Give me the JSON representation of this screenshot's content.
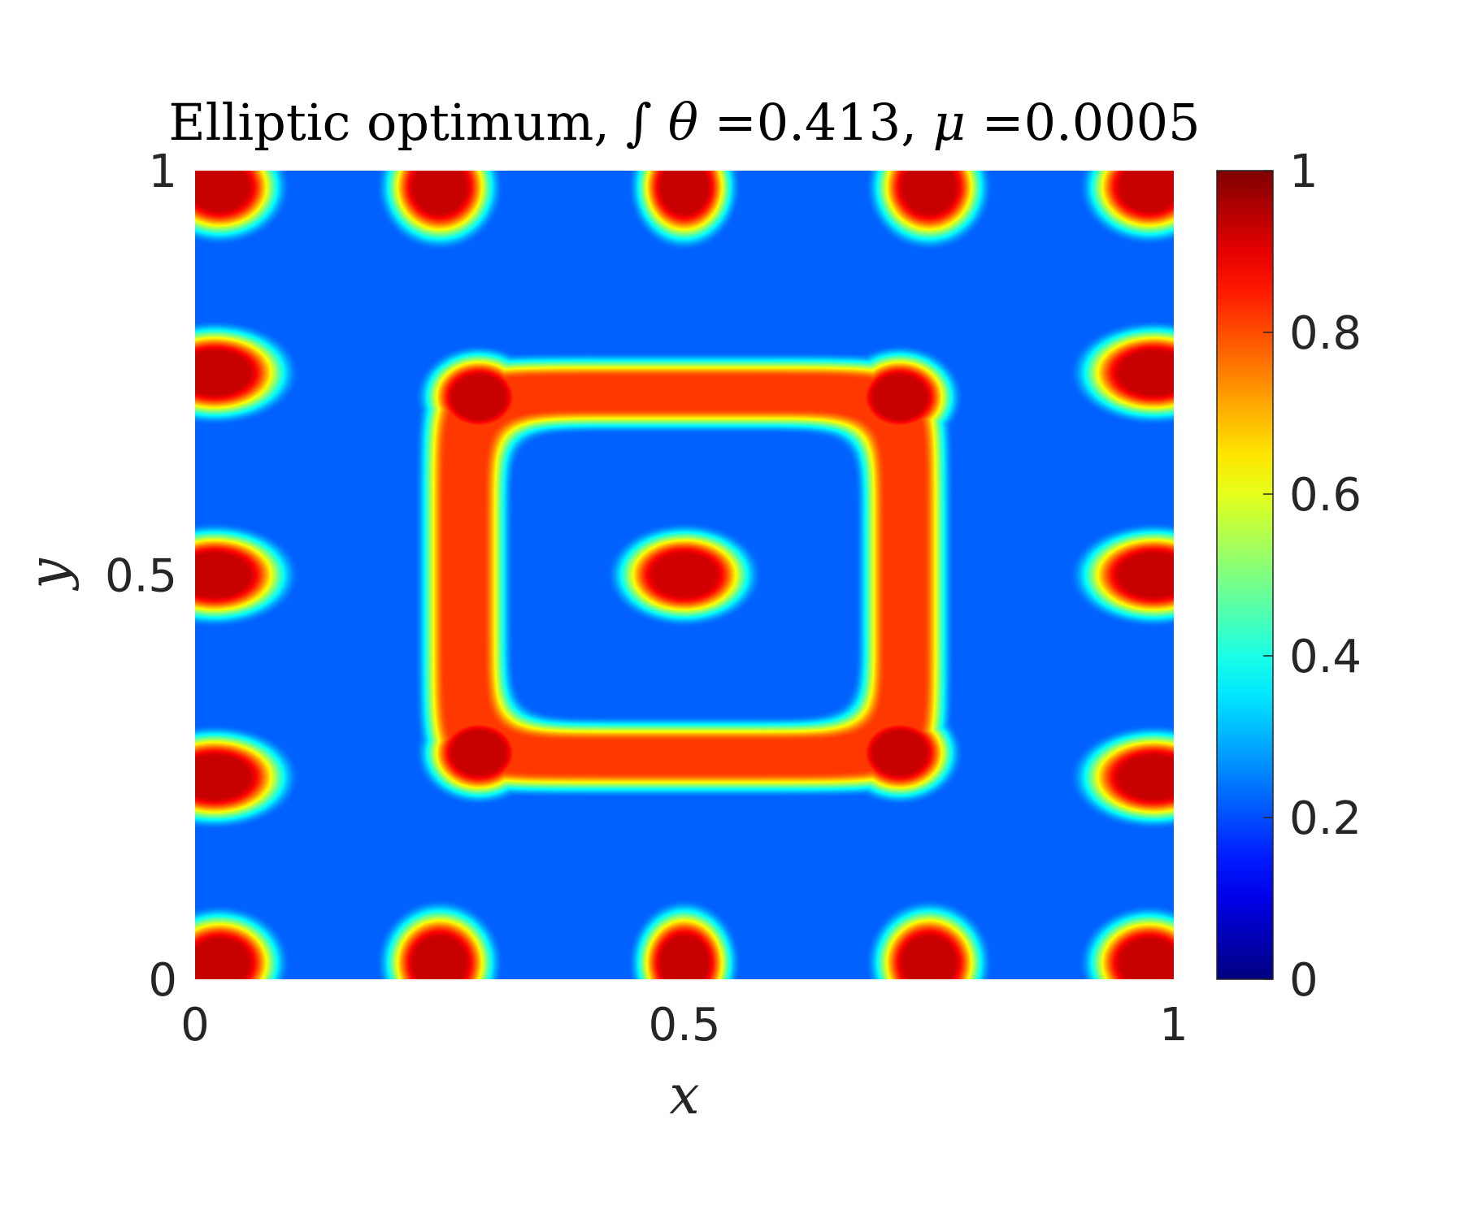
{
  "chart_data": {
    "type": "heatmap",
    "title": {
      "prefix": "Elliptic optimum, ",
      "integral_sign": "∫",
      "theta_symbol": "θ",
      "theta_value": " =0.413, ",
      "mu_symbol": "μ",
      "mu_value": " =0.0005"
    },
    "xlabel": "x",
    "ylabel": "y",
    "xlim": [
      0,
      1
    ],
    "ylim": [
      0,
      1
    ],
    "x_ticks": [
      0,
      0.5,
      1
    ],
    "y_ticks": [
      0,
      0.5,
      1
    ],
    "x_tick_labels": [
      "0",
      "0.5",
      "1"
    ],
    "y_tick_labels": [
      "0",
      "0.5",
      "1"
    ],
    "colormap": "jet",
    "color_range": [
      0,
      1
    ],
    "colorbar_ticks": [
      0,
      0.2,
      0.4,
      0.6,
      0.8,
      1
    ],
    "colorbar_tick_labels": [
      "0",
      "0.2",
      "0.4",
      "0.6",
      "0.8",
      "1"
    ],
    "background_level": 0.22,
    "features": [
      {
        "shape": "blob",
        "x": 0.5,
        "y": 0.5,
        "rx": 0.055,
        "ry": 0.045,
        "value": 0.92
      },
      {
        "shape": "square-ring",
        "x": 0.5,
        "y": 0.5,
        "half_width": 0.225,
        "thickness": 0.035,
        "value": 0.82
      },
      {
        "shape": "blob",
        "x": 0.29,
        "y": 0.72,
        "rx": 0.045,
        "ry": 0.045,
        "value": 0.93
      },
      {
        "shape": "blob",
        "x": 0.72,
        "y": 0.72,
        "rx": 0.045,
        "ry": 0.045,
        "value": 0.93
      },
      {
        "shape": "blob",
        "x": 0.29,
        "y": 0.28,
        "rx": 0.045,
        "ry": 0.045,
        "value": 0.93
      },
      {
        "shape": "blob",
        "x": 0.72,
        "y": 0.28,
        "rx": 0.045,
        "ry": 0.045,
        "value": 0.93
      },
      {
        "shape": "blob",
        "x": 0.025,
        "y": 0.98,
        "rx": 0.05,
        "ry": 0.05,
        "value": 0.93
      },
      {
        "shape": "blob",
        "x": 0.25,
        "y": 0.98,
        "rx": 0.045,
        "ry": 0.055,
        "value": 0.93
      },
      {
        "shape": "blob",
        "x": 0.5,
        "y": 0.98,
        "rx": 0.04,
        "ry": 0.055,
        "value": 0.93
      },
      {
        "shape": "blob",
        "x": 0.75,
        "y": 0.98,
        "rx": 0.045,
        "ry": 0.055,
        "value": 0.93
      },
      {
        "shape": "blob",
        "x": 0.975,
        "y": 0.98,
        "rx": 0.05,
        "ry": 0.05,
        "value": 0.93
      },
      {
        "shape": "blob",
        "x": 0.025,
        "y": 0.02,
        "rx": 0.05,
        "ry": 0.05,
        "value": 0.93
      },
      {
        "shape": "blob",
        "x": 0.25,
        "y": 0.02,
        "rx": 0.045,
        "ry": 0.055,
        "value": 0.93
      },
      {
        "shape": "blob",
        "x": 0.5,
        "y": 0.02,
        "rx": 0.04,
        "ry": 0.055,
        "value": 0.93
      },
      {
        "shape": "blob",
        "x": 0.75,
        "y": 0.02,
        "rx": 0.045,
        "ry": 0.055,
        "value": 0.93
      },
      {
        "shape": "blob",
        "x": 0.975,
        "y": 0.02,
        "rx": 0.05,
        "ry": 0.05,
        "value": 0.93
      },
      {
        "shape": "blob",
        "x": 0.02,
        "y": 0.75,
        "rx": 0.06,
        "ry": 0.045,
        "value": 0.93
      },
      {
        "shape": "blob",
        "x": 0.02,
        "y": 0.5,
        "rx": 0.06,
        "ry": 0.045,
        "value": 0.93
      },
      {
        "shape": "blob",
        "x": 0.02,
        "y": 0.25,
        "rx": 0.06,
        "ry": 0.045,
        "value": 0.93
      },
      {
        "shape": "blob",
        "x": 0.98,
        "y": 0.75,
        "rx": 0.06,
        "ry": 0.045,
        "value": 0.93
      },
      {
        "shape": "blob",
        "x": 0.98,
        "y": 0.5,
        "rx": 0.06,
        "ry": 0.045,
        "value": 0.93
      },
      {
        "shape": "blob",
        "x": 0.98,
        "y": 0.25,
        "rx": 0.06,
        "ry": 0.045,
        "value": 0.93
      }
    ],
    "grid": false,
    "legend": "colorbar-right"
  }
}
